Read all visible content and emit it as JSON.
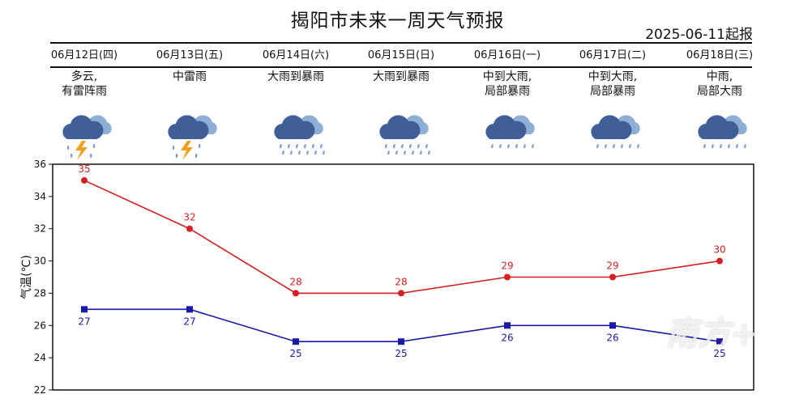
{
  "header": {
    "title": "揭阳市未来一周天气预报",
    "issue_date": "2025-06-11起报"
  },
  "days": [
    {
      "date": "06月12日(四)",
      "weather": "多云,\n有雷阵雨",
      "icon": "thunder-rain-icon"
    },
    {
      "date": "06月13日(五)",
      "weather": "中雷雨",
      "icon": "thunder-rain-icon"
    },
    {
      "date": "06月14日(六)",
      "weather": "大雨到暴雨",
      "icon": "heavy-rain-icon"
    },
    {
      "date": "06月15日(日)",
      "weather": "大雨到暴雨",
      "icon": "heavy-rain-icon"
    },
    {
      "date": "06月16日(一)",
      "weather": "中到大雨,\n局部暴雨",
      "icon": "rain-icon"
    },
    {
      "date": "06月17日(二)",
      "weather": "中到大雨,\n局部暴雨",
      "icon": "rain-icon"
    },
    {
      "date": "06月18日(三)",
      "weather": "中雨,\n局部大雨",
      "icon": "rain-icon"
    }
  ],
  "colors": {
    "high": "#d42020",
    "low": "#1a1aa8",
    "cloud_dark": "#3f5f96",
    "cloud_light": "#8eaed6",
    "drop": "#7a9ccc",
    "bolt": "#f0a020"
  },
  "chart_data": {
    "type": "line",
    "ylabel": "气温(℃)",
    "ylim": [
      22,
      36
    ],
    "yticks": [
      22,
      24,
      26,
      28,
      30,
      32,
      34,
      36
    ],
    "grid": false,
    "series": [
      {
        "key": "high",
        "values": [
          35,
          32,
          28,
          28,
          29,
          29,
          30
        ],
        "marker": "circle"
      },
      {
        "key": "low",
        "values": [
          27,
          27,
          25,
          25,
          26,
          26,
          25
        ],
        "marker": "square"
      }
    ]
  },
  "watermark": "南方+"
}
